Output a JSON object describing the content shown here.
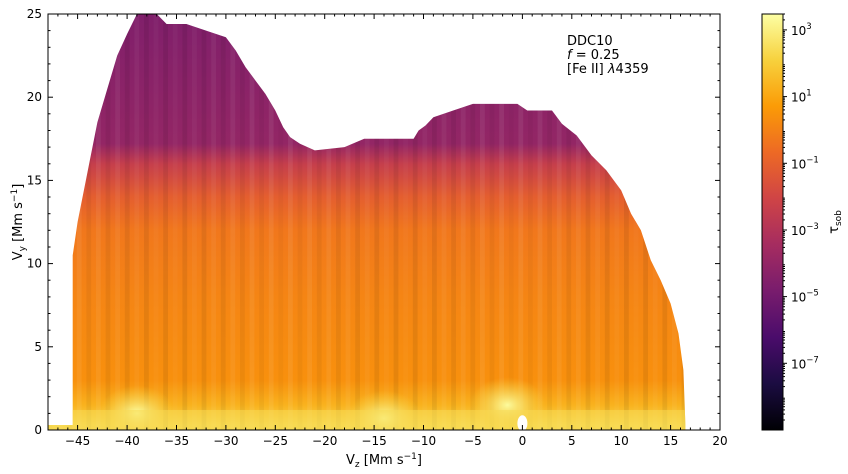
{
  "chart_data": {
    "type": "heatmap",
    "title": "",
    "xlabel": "V",
    "xlabel_sub": "z",
    "xlabel_unit": " [Mm s",
    "xlabel_unit_exp": "−1",
    "xlabel_unit_close": "]",
    "ylabel": "V",
    "ylabel_sub": "y",
    "ylabel_unit": " [Mm s",
    "ylabel_unit_exp": "−1",
    "ylabel_unit_close": "]",
    "xlim": [
      -48,
      20
    ],
    "ylim": [
      0,
      25
    ],
    "x_ticks": [
      -45,
      -40,
      -35,
      -30,
      -25,
      -20,
      -15,
      -10,
      -5,
      0,
      5,
      10,
      15,
      20
    ],
    "x_tick_labels": [
      "−45",
      "−40",
      "−35",
      "−30",
      "−25",
      "−20",
      "−15",
      "−10",
      "−5",
      "0",
      "5",
      "10",
      "15",
      "20"
    ],
    "y_ticks": [
      0,
      5,
      10,
      15,
      20,
      25
    ],
    "y_tick_labels": [
      "0",
      "5",
      "10",
      "15",
      "20",
      "25"
    ],
    "annotation": {
      "line1": "DDC10",
      "line2_var": "f",
      "line2_rest": " = 0.25",
      "line3_a": "[Fe II] ",
      "line3_lambda": "λ",
      "line3_b": "4359"
    },
    "colorbar": {
      "label": "τ",
      "label_sub": "sob",
      "scale": "log",
      "range": [
        1e-09,
        3000
      ],
      "colormap": "inferno",
      "colormap_stops": [
        "#000004",
        "#1b0c41",
        "#4a0c6b",
        "#781c6d",
        "#a52c60",
        "#cf4446",
        "#ed6925",
        "#fb9b06",
        "#f7d13d",
        "#fcffa4"
      ],
      "ticks": [
        {
          "value": 1e-07,
          "base": "10",
          "exp": "−7"
        },
        {
          "value": 1e-05,
          "base": "10",
          "exp": "−5"
        },
        {
          "value": 0.001,
          "base": "10",
          "exp": "−3"
        },
        {
          "value": 0.1,
          "base": "10",
          "exp": "−1"
        },
        {
          "value": 10,
          "base": "10",
          "exp": "1"
        },
        {
          "value": 1000,
          "base": "10",
          "exp": "3"
        }
      ]
    },
    "region_outline": [
      [
        -48,
        0
      ],
      [
        -48,
        0.3
      ],
      [
        -45.5,
        0.3
      ],
      [
        -45.5,
        10.5
      ],
      [
        -45,
        12.5
      ],
      [
        -44,
        15.5
      ],
      [
        -43,
        18.5
      ],
      [
        -42,
        20.5
      ],
      [
        -41,
        22.5
      ],
      [
        -40,
        23.8
      ],
      [
        -39,
        25
      ],
      [
        -37,
        25
      ],
      [
        -36,
        24.4
      ],
      [
        -34,
        24.4
      ],
      [
        -32,
        24
      ],
      [
        -30,
        23.6
      ],
      [
        -29,
        22.8
      ],
      [
        -28,
        21.8
      ],
      [
        -27,
        21
      ],
      [
        -26,
        20.2
      ],
      [
        -25,
        19.2
      ],
      [
        -24.2,
        18.2
      ],
      [
        -23.5,
        17.6
      ],
      [
        -22.5,
        17.2
      ],
      [
        -21,
        16.8
      ],
      [
        -18,
        17
      ],
      [
        -16,
        17.5
      ],
      [
        -11,
        17.5
      ],
      [
        -10.5,
        18
      ],
      [
        -9.8,
        18.3
      ],
      [
        -9,
        18.8
      ],
      [
        -7,
        19.2
      ],
      [
        -5,
        19.6
      ],
      [
        -0.5,
        19.6
      ],
      [
        0.5,
        19.2
      ],
      [
        3,
        19.2
      ],
      [
        4,
        18.4
      ],
      [
        5.5,
        17.7
      ],
      [
        7,
        16.5
      ],
      [
        8.5,
        15.6
      ],
      [
        10,
        14.4
      ],
      [
        11,
        13
      ],
      [
        12,
        12
      ],
      [
        13,
        10.2
      ],
      [
        14,
        9
      ],
      [
        15,
        7.6
      ],
      [
        15.8,
        5.8
      ],
      [
        16.3,
        3.6
      ],
      [
        16.5,
        0.3
      ],
      [
        16.5,
        0
      ]
    ],
    "tau_profile": [
      {
        "y": 0.3,
        "log_tau": 2.3
      },
      {
        "y": 1.5,
        "log_tau": 1.3
      },
      {
        "y": 3,
        "log_tau": 0.4
      },
      {
        "y": 8,
        "log_tau": 0.1
      },
      {
        "y": 12,
        "log_tau": -0.3
      },
      {
        "y": 14,
        "log_tau": -1.1
      },
      {
        "y": 16,
        "log_tau": -2.4
      },
      {
        "y": 17.2,
        "log_tau": -4
      },
      {
        "y": 25,
        "log_tau": -4.6
      }
    ],
    "bright_spots": [
      {
        "x": -39,
        "y": 1,
        "log_tau": 2.3
      },
      {
        "x": -1.5,
        "y": 1.5,
        "log_tau": 2.7
      },
      {
        "x": -14,
        "y": 0.7,
        "log_tau": 1.5
      }
    ],
    "hole": {
      "x": 0,
      "y": 0.4
    }
  }
}
